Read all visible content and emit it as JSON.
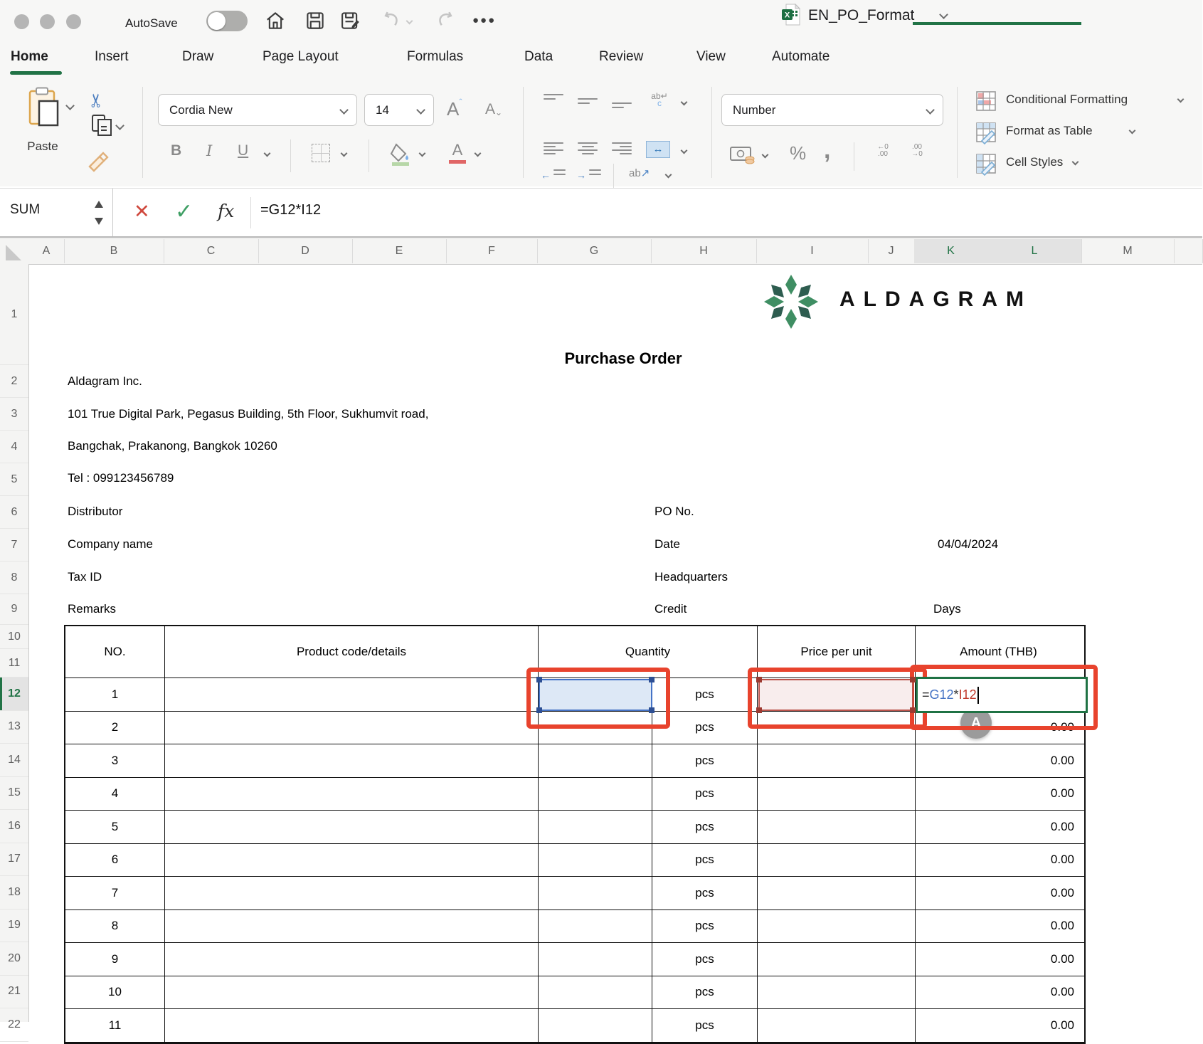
{
  "titlebar": {
    "autosave": "AutoSave",
    "doc_title": "EN_PO_Format"
  },
  "tabs": [
    {
      "label": "Home",
      "active": true
    },
    {
      "label": "Insert",
      "active": false
    },
    {
      "label": "Draw",
      "active": false
    },
    {
      "label": "Page Layout",
      "active": false
    },
    {
      "label": "Formulas",
      "active": false
    },
    {
      "label": "Data",
      "active": false
    },
    {
      "label": "Review",
      "active": false
    },
    {
      "label": "View",
      "active": false
    },
    {
      "label": "Automate",
      "active": false
    }
  ],
  "ribbon": {
    "paste": "Paste",
    "font_name": "Cordia New",
    "font_size": "14",
    "bold": "B",
    "italic": "I",
    "underline": "U",
    "grow_font": "A",
    "shrink_font": "A",
    "wrap_top": "ab↵",
    "wrap_bottom": "c",
    "merge_glyph": "↔",
    "orient_text": "ab",
    "orient_arrow": "↗",
    "indent_left_arrow": "←",
    "indent_right_arrow": "→",
    "number_format": "Number",
    "percent": "%",
    "comma": ",",
    "inc_dec_top": "←0",
    "inc_dec_bottom": ".00",
    "dec_dec_top": ".00",
    "dec_dec_bottom": "→0",
    "styles": [
      {
        "label": "Conditional Formatting"
      },
      {
        "label": "Format as Table"
      },
      {
        "label": "Cell Styles"
      }
    ]
  },
  "formula_bar": {
    "name_box": "SUM",
    "formula": "=G12*I12"
  },
  "grid": {
    "columns": [
      "A",
      "B",
      "C",
      "D",
      "E",
      "F",
      "G",
      "H",
      "I",
      "J",
      "K",
      "L",
      "M",
      ""
    ],
    "selected_columns": [
      "K",
      "L"
    ],
    "rows": [
      "1",
      "2",
      "3",
      "4",
      "5",
      "6",
      "7",
      "8",
      "9",
      "10",
      "11",
      "12",
      "13",
      "14",
      "15",
      "16",
      "17",
      "18",
      "19",
      "20",
      "21",
      "22"
    ],
    "selected_row": "12"
  },
  "sheet": {
    "logo_text": "ALDAGRAM",
    "title": "Purchase Order",
    "company_name": "Aldagram Inc.",
    "address_line1": "101 True Digital Park, Pegasus Building, 5th Floor, Sukhumvit road,",
    "address_line2": "Bangchak, Prakanong, Bangkok 10260",
    "tel": "Tel : 099123456789",
    "field_labels_left": [
      "Distributor",
      "Company name",
      "Tax ID",
      "Remarks"
    ],
    "field_labels_right": [
      "PO No.",
      "Date",
      "Headquarters",
      "Credit"
    ],
    "date_value": "04/04/2024",
    "days_label": "Days",
    "table": {
      "headers": [
        "NO.",
        "Product code/details",
        "Quantity",
        "Price per unit",
        "Amount (THB)"
      ],
      "unit": "pcs",
      "rows": [
        {
          "no": "1",
          "amount": ""
        },
        {
          "no": "2",
          "amount": "0.00"
        },
        {
          "no": "3",
          "amount": "0.00"
        },
        {
          "no": "4",
          "amount": "0.00"
        },
        {
          "no": "5",
          "amount": "0.00"
        },
        {
          "no": "6",
          "amount": "0.00"
        },
        {
          "no": "7",
          "amount": "0.00"
        },
        {
          "no": "8",
          "amount": "0.00"
        },
        {
          "no": "9",
          "amount": "0.00"
        },
        {
          "no": "10",
          "amount": "0.00"
        },
        {
          "no": "11",
          "amount": "0.00"
        }
      ]
    },
    "edit_cell": {
      "eq": "=",
      "ref1": "G12",
      "op": "*",
      "ref2": "I12"
    },
    "collab_badge": "A"
  },
  "colors": {
    "excel_green": "#1D6F42",
    "selection_green": "#1F7244",
    "annotation_red": "#E8432D",
    "reference_blue": "#4472C4",
    "reference_red": "#C0392B"
  }
}
